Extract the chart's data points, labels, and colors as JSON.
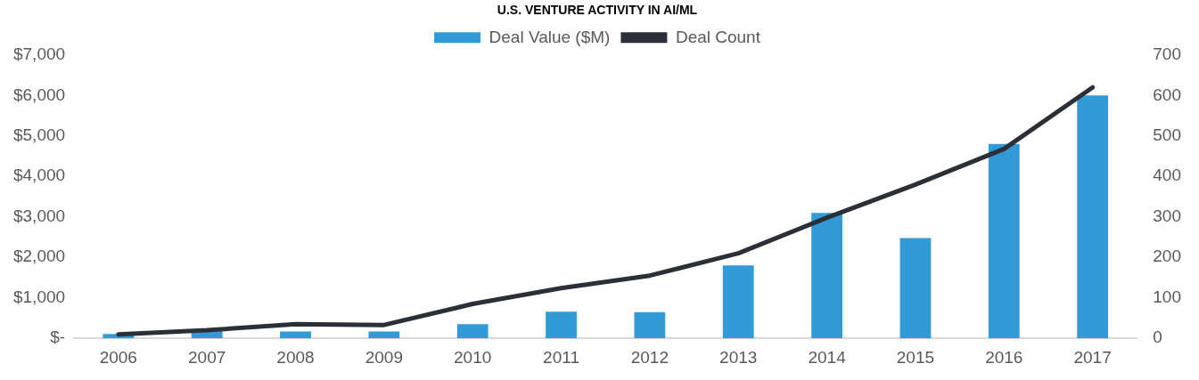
{
  "chart_data": {
    "type": "bar",
    "title": "U.S. VENTURE ACTIVITY IN AI/ML",
    "categories": [
      "2006",
      "2007",
      "2008",
      "2009",
      "2010",
      "2011",
      "2012",
      "2013",
      "2014",
      "2015",
      "2016",
      "2017"
    ],
    "series": [
      {
        "name": "Deal Value ($M)",
        "color": "#329ad6",
        "values": [
          110,
          210,
          170,
          170,
          350,
          660,
          650,
          1800,
          3100,
          2480,
          4800,
          6000
        ]
      },
      {
        "name": "Deal Count",
        "type": "line",
        "axis": "y2",
        "color": "#2b3038",
        "values": [
          10,
          20,
          35,
          33,
          85,
          124,
          155,
          210,
          298,
          380,
          468,
          620
        ]
      }
    ],
    "ylim": [
      0,
      7000
    ],
    "yticks": [
      {
        "value": 0,
        "label": "$-"
      },
      {
        "value": 1000,
        "label": "$1,000"
      },
      {
        "value": 2000,
        "label": "$2,000"
      },
      {
        "value": 3000,
        "label": "$3,000"
      },
      {
        "value": 4000,
        "label": "$4,000"
      },
      {
        "value": 5000,
        "label": "$5,000"
      },
      {
        "value": 6000,
        "label": "$6,000"
      },
      {
        "value": 7000,
        "label": "$7,000"
      }
    ],
    "y2lim": [
      0,
      700
    ],
    "y2ticks": [
      0,
      100,
      200,
      300,
      400,
      500,
      600,
      700
    ],
    "grid": false,
    "legend": "top",
    "marker": "none"
  }
}
